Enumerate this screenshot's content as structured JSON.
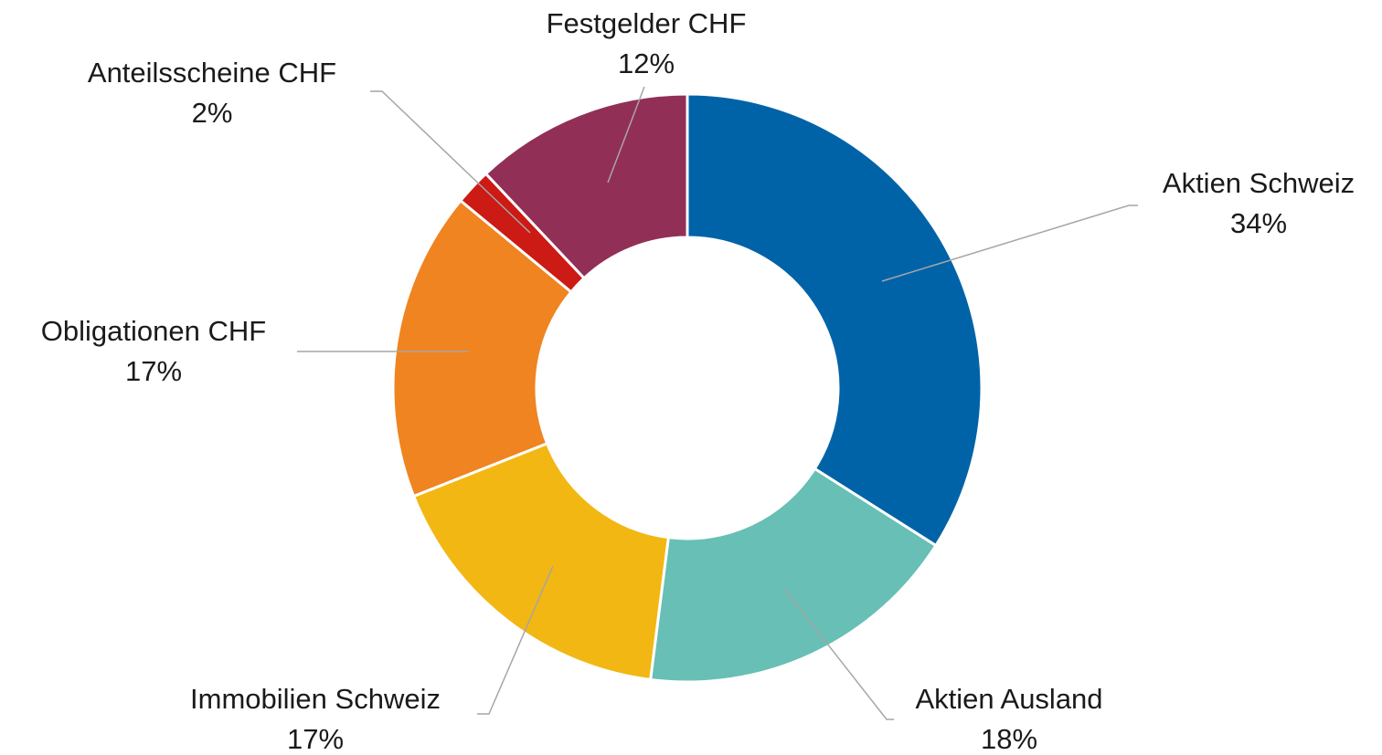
{
  "chart_data": {
    "type": "donut",
    "categories": [
      "Aktien Schweiz",
      "Aktien Ausland",
      "Immobilien Schweiz",
      "Obligationen CHF",
      "Anteilsscheine CHF",
      "Festgelder CHF"
    ],
    "values": [
      34,
      18,
      17,
      17,
      2,
      12
    ],
    "value_labels": [
      "34%",
      "18%",
      "17%",
      "17%",
      "2%",
      "12%"
    ],
    "colors": [
      "#0063a8",
      "#67bfb5",
      "#f2b713",
      "#ef8420",
      "#cc1a14",
      "#922f57"
    ]
  }
}
